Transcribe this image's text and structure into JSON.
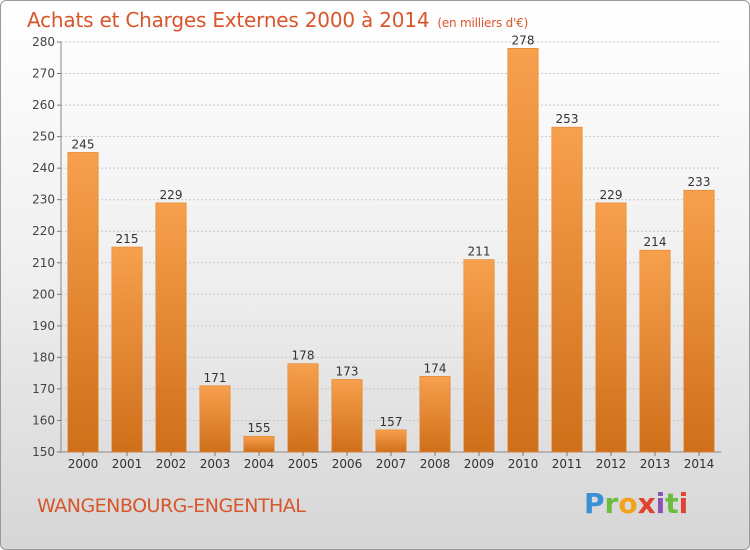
{
  "header": {
    "title": "Achats et Charges Externes 2000 à 2014",
    "subtitle": "(en milliers d'€)"
  },
  "footer": {
    "commune": "WANGENBOURG-ENGENTHAL",
    "logo": [
      "P",
      "r",
      "o",
      "x",
      "i",
      "t",
      "i"
    ]
  },
  "colors": {
    "bar_light": "#f7a04d",
    "bar_dark": "#cf6f1a",
    "accent": "#d8562b"
  },
  "chart_data": {
    "type": "bar",
    "title": "Achats et Charges Externes 2000 à 2014",
    "subtitle": "(en milliers d'€)",
    "categories": [
      "2000",
      "2001",
      "2002",
      "2003",
      "2004",
      "2005",
      "2006",
      "2007",
      "2008",
      "2009",
      "2010",
      "2011",
      "2012",
      "2013",
      "2014"
    ],
    "values": [
      245,
      215,
      229,
      171,
      155,
      178,
      173,
      157,
      174,
      211,
      278,
      253,
      229,
      214,
      233
    ],
    "ylim": [
      150,
      280
    ],
    "yticks": [
      150,
      160,
      170,
      180,
      190,
      200,
      210,
      220,
      230,
      240,
      250,
      260,
      270,
      280
    ],
    "grid": true,
    "xlabel": "",
    "ylabel": ""
  }
}
